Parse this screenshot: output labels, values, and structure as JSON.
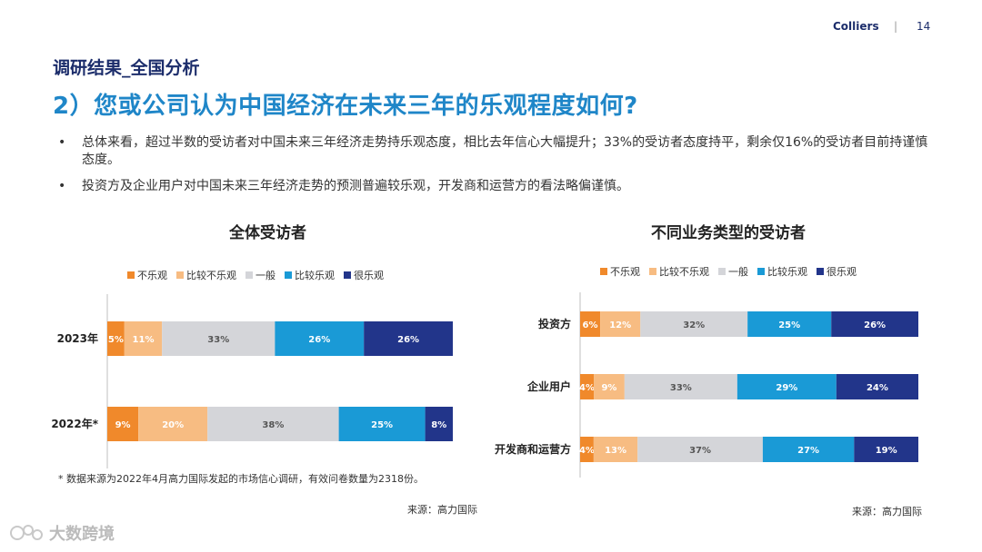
{
  "header": {
    "brand": "Colliers",
    "divider": "|",
    "page": "14"
  },
  "section_title": "调研结果_全国分析",
  "main_title": "2）您或公司认为中国经济在未来三年的乐观程度如何?",
  "bullets": [
    "总体来看，超过半数的受访者对中国未来三年经济走势持乐观态度，相比去年信心大幅提升；33%的受访者态度持平，剩余仅16%的受访者目前持谨慎态度。",
    "投资方及企业用户对中国未来三年经济走势的预测普遍较乐观，开发商和运营方的看法略偏谨慎。"
  ],
  "bullet_symbol": "•",
  "legend": [
    {
      "label": "不乐观",
      "color": "#f0892b"
    },
    {
      "label": "比较不乐观",
      "color": "#f7bc82"
    },
    {
      "label": "一般",
      "color": "#d4d5d9"
    },
    {
      "label": "比较乐观",
      "color": "#1a9ad6"
    },
    {
      "label": "很乐观",
      "color": "#22358a"
    }
  ],
  "footnote": "* 数据来源为2022年4月高力国际发起的市场信心调研，有效问卷数量为2318份。",
  "source_left": "来源：高力国际",
  "source_right": "来源：高力国际",
  "watermark": "大数跨境",
  "chart_data": [
    {
      "type": "bar",
      "orientation": "horizontal-stacked",
      "title": "全体受访者",
      "categories": [
        "2023年",
        "2022年*"
      ],
      "series": [
        {
          "name": "不乐观",
          "values": [
            5,
            9
          ],
          "labels": [
            "5%",
            "9%"
          ]
        },
        {
          "name": "比较不乐观",
          "values": [
            11,
            20
          ],
          "labels": [
            "11%",
            "20%"
          ]
        },
        {
          "name": "一般",
          "values": [
            33,
            38
          ],
          "labels": [
            "33%",
            "38%"
          ]
        },
        {
          "name": "比较乐观",
          "values": [
            26,
            25
          ],
          "labels": [
            "26%",
            "25%"
          ]
        },
        {
          "name": "很乐观",
          "values": [
            26,
            8
          ],
          "labels": [
            "26%",
            "8%"
          ]
        }
      ],
      "legend_position": "top"
    },
    {
      "type": "bar",
      "orientation": "horizontal-stacked",
      "title": "不同业务类型的受访者",
      "categories": [
        "投资方",
        "企业用户",
        "开发商和运营方"
      ],
      "series": [
        {
          "name": "不乐观",
          "values": [
            6,
            4,
            4
          ],
          "labels": [
            "6%",
            "4%",
            "4%"
          ]
        },
        {
          "name": "比较不乐观",
          "values": [
            12,
            9,
            13
          ],
          "labels": [
            "12%",
            "9%",
            "13%"
          ]
        },
        {
          "name": "一般",
          "values": [
            32,
            33,
            37
          ],
          "labels": [
            "32%",
            "33%",
            "37%"
          ]
        },
        {
          "name": "比较乐观",
          "values": [
            25,
            29,
            27
          ],
          "labels": [
            "25%",
            "29%",
            "27%"
          ]
        },
        {
          "name": "很乐观",
          "values": [
            26,
            24,
            19
          ],
          "labels": [
            "26%",
            "24%",
            "19%"
          ]
        }
      ],
      "legend_position": "top"
    }
  ]
}
